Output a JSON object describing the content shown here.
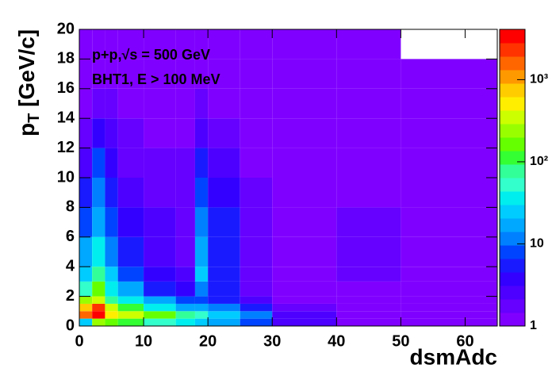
{
  "chart_data": {
    "type": "heatmap",
    "annotations": [
      "p+p,√s = 500 GeV",
      "BHT1, E > 100 MeV"
    ],
    "x_label": "dsmAdc",
    "y_label": {
      "main": "p",
      "sub": "T",
      "rest": " [GeV/c]"
    },
    "x_bins": [
      0,
      2,
      4,
      6,
      10,
      15,
      18,
      20,
      25,
      30,
      40,
      50,
      65
    ],
    "y_bins": [
      0,
      0.5,
      1,
      1.5,
      2,
      3,
      4,
      6,
      8,
      10,
      12,
      14,
      16,
      18,
      20
    ],
    "values": [
      [
        30,
        200,
        150,
        100,
        60,
        40,
        30,
        15,
        8,
        3,
        1,
        1
      ],
      [
        1500,
        3000,
        600,
        300,
        150,
        80,
        60,
        30,
        10,
        3,
        1,
        1
      ],
      [
        800,
        2500,
        300,
        100,
        40,
        20,
        15,
        10,
        5,
        2,
        1,
        1
      ],
      [
        200,
        400,
        80,
        40,
        15,
        8,
        8,
        5,
        3,
        1,
        1,
        1
      ],
      [
        60,
        150,
        40,
        15,
        6,
        4,
        10,
        5,
        2,
        1,
        1,
        1
      ],
      [
        30,
        80,
        25,
        8,
        4,
        3,
        25,
        6,
        2,
        1,
        2,
        1
      ],
      [
        15,
        40,
        12,
        5,
        3,
        2,
        20,
        6,
        2,
        1,
        2,
        1
      ],
      [
        8,
        20,
        8,
        4,
        3,
        2,
        12,
        5,
        2,
        1,
        2,
        1
      ],
      [
        5,
        12,
        6,
        3,
        2,
        2,
        8,
        4,
        2,
        1,
        1,
        1
      ],
      [
        3,
        8,
        4,
        2,
        2,
        2,
        5,
        3,
        1,
        1,
        1,
        1
      ],
      [
        2,
        4,
        3,
        2,
        1,
        1,
        3,
        2,
        1,
        1,
        1,
        1
      ],
      [
        1,
        2,
        2,
        1,
        1,
        1,
        2,
        1,
        1,
        1,
        1,
        1
      ],
      [
        1,
        1,
        1,
        1,
        1,
        1,
        1,
        1,
        1,
        1,
        1,
        1
      ],
      [
        1,
        1,
        1,
        1,
        1,
        1,
        1,
        1,
        1,
        1,
        1,
        null
      ]
    ],
    "xlim": [
      0,
      65
    ],
    "ylim": [
      0,
      20
    ],
    "xticks": [
      0,
      10,
      20,
      30,
      40,
      50,
      60
    ],
    "yticks": [
      0,
      2,
      4,
      6,
      8,
      10,
      12,
      14,
      16,
      18,
      20
    ],
    "zlim": [
      1,
      4100
    ],
    "zlog": true,
    "zticks": [
      1,
      10,
      {
        "value": 100,
        "label": "10²"
      },
      {
        "value": 1000,
        "label": "10³"
      }
    ],
    "palette": [
      "#8000ff",
      "#6600ff",
      "#4d00ff",
      "#3300ff",
      "#1a1aff",
      "#0044ff",
      "#0080ff",
      "#00a8ff",
      "#00ccff",
      "#00eeee",
      "#33ffcc",
      "#33ff99",
      "#33ff33",
      "#66ff00",
      "#99ff00",
      "#ccff00",
      "#ffee00",
      "#ffcc00",
      "#ff9900",
      "#ff6600",
      "#ff3300",
      "#ff0000"
    ]
  }
}
